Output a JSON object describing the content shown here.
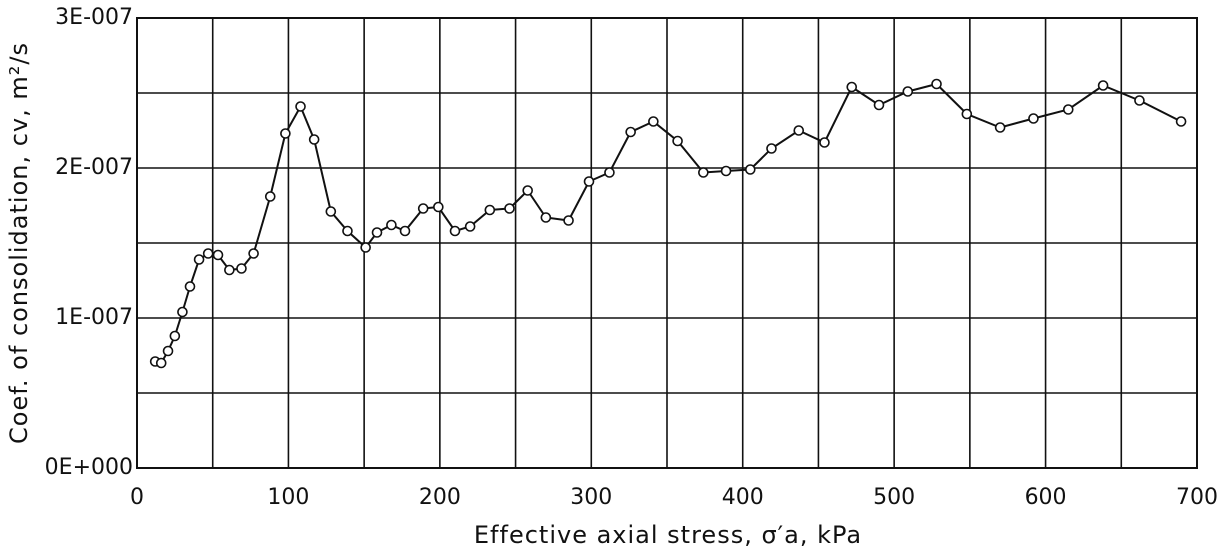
{
  "chart_data": {
    "type": "line",
    "x_label": "Effective axial stress,  σ′a, kPa",
    "y_label": "Coef. of consolidation, cv,  m²/s",
    "x": [
      12,
      16,
      20.5,
      25,
      30,
      35,
      41,
      47,
      53.5,
      61,
      69,
      77,
      88,
      98,
      108,
      117,
      128,
      139,
      151,
      158.5,
      168,
      177,
      189,
      199,
      210,
      220,
      233,
      246,
      258,
      270,
      285,
      298.5,
      312,
      326,
      341,
      357,
      374,
      389,
      405,
      419,
      437,
      454,
      472,
      490,
      509,
      528,
      548,
      570,
      592,
      615,
      638,
      662,
      689.5
    ],
    "series": [
      {
        "name": "cv",
        "color": "#111111",
        "values": [
          7.1e-08,
          7e-08,
          7.8e-08,
          8.8e-08,
          1.04e-07,
          1.21e-07,
          1.39e-07,
          1.43e-07,
          1.42e-07,
          1.32e-07,
          1.33e-07,
          1.43e-07,
          1.81e-07,
          2.23e-07,
          2.41e-07,
          2.19e-07,
          1.71e-07,
          1.58e-07,
          1.47e-07,
          1.57e-07,
          1.62e-07,
          1.58e-07,
          1.73e-07,
          1.74e-07,
          1.58e-07,
          1.61e-07,
          1.72e-07,
          1.73e-07,
          1.85e-07,
          1.67e-07,
          1.65e-07,
          1.91e-07,
          1.97e-07,
          2.24e-07,
          2.31e-07,
          2.18e-07,
          1.97e-07,
          1.98e-07,
          1.99e-07,
          2.13e-07,
          2.25e-07,
          2.17e-07,
          2.54e-07,
          2.42e-07,
          2.51e-07,
          2.56e-07,
          2.36e-07,
          2.27e-07,
          2.33e-07,
          2.39e-07,
          2.55e-07,
          2.45e-07,
          2.31e-07
        ]
      }
    ],
    "xlim": [
      0,
      700
    ],
    "xticks": [
      0,
      100,
      200,
      300,
      400,
      500,
      600,
      700
    ],
    "xminorticks": [
      50,
      150,
      250,
      350,
      450,
      550,
      650
    ],
    "ylim": [
      0,
      3e-07
    ],
    "yticks": [
      {
        "value": 0,
        "label": "0E+000"
      },
      {
        "value": 1e-07,
        "label": "1E-007"
      },
      {
        "value": 2e-07,
        "label": "2E-007"
      },
      {
        "value": 3e-07,
        "label": "3E-007"
      }
    ],
    "yminorticks": [
      5e-08,
      1.5e-07,
      2.5e-07
    ],
    "grid": true,
    "markers": "open-circle"
  }
}
